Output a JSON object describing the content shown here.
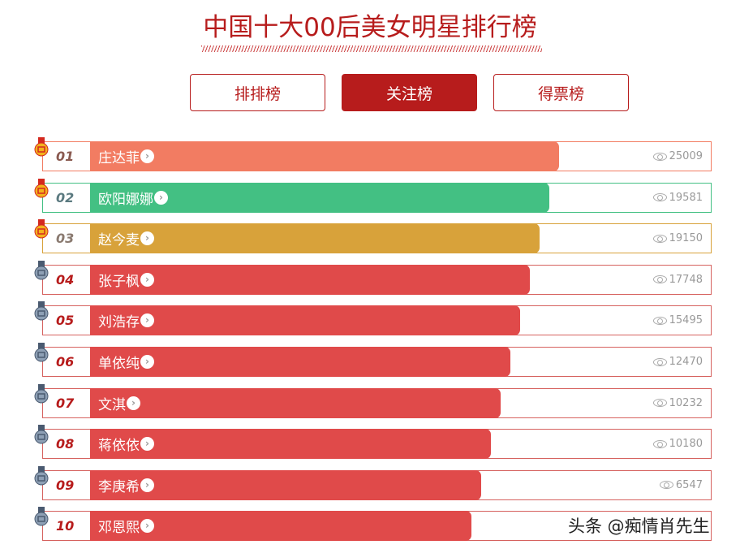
{
  "title": "中国十大00后美女明星排行榜",
  "tabs": [
    {
      "label": "排排榜",
      "active": false
    },
    {
      "label": "关注榜",
      "active": true
    },
    {
      "label": "得票榜",
      "active": false
    }
  ],
  "rows": [
    {
      "rank": "01",
      "name": "庄达菲",
      "views": "25009",
      "color": "#f27c62",
      "rank_color": "#8a5a50",
      "medal": "gold"
    },
    {
      "rank": "02",
      "name": "欧阳娜娜",
      "views": "19581",
      "color": "#43c083",
      "rank_color": "#5b7a80",
      "medal": "gold"
    },
    {
      "rank": "03",
      "name": "赵今麦",
      "views": "19150",
      "color": "#d8a23a",
      "rank_color": "#8a7a70",
      "medal": "gold"
    },
    {
      "rank": "04",
      "name": "张子枫",
      "views": "17748",
      "color": "#e04a4a",
      "rank_color": "#b71c1c",
      "medal": "silver"
    },
    {
      "rank": "05",
      "name": "刘浩存",
      "views": "15495",
      "color": "#e04a4a",
      "rank_color": "#b71c1c",
      "medal": "silver"
    },
    {
      "rank": "06",
      "name": "单依纯",
      "views": "12470",
      "color": "#e04a4a",
      "rank_color": "#b71c1c",
      "medal": "silver"
    },
    {
      "rank": "07",
      "name": "文淇",
      "views": "10232",
      "color": "#e04a4a",
      "rank_color": "#b71c1c",
      "medal": "silver"
    },
    {
      "rank": "08",
      "name": "蒋依依",
      "views": "10180",
      "color": "#e04a4a",
      "rank_color": "#b71c1c",
      "medal": "silver"
    },
    {
      "rank": "09",
      "name": "李庚希",
      "views": "6547",
      "color": "#e04a4a",
      "rank_color": "#b71c1c",
      "medal": "silver"
    },
    {
      "rank": "10",
      "name": "邓恩熙",
      "views": "",
      "color": "#e04a4a",
      "rank_color": "#b71c1c",
      "medal": "silver"
    }
  ],
  "watermark": "头条 @痴情肖先生",
  "accent": "#b71c1c"
}
